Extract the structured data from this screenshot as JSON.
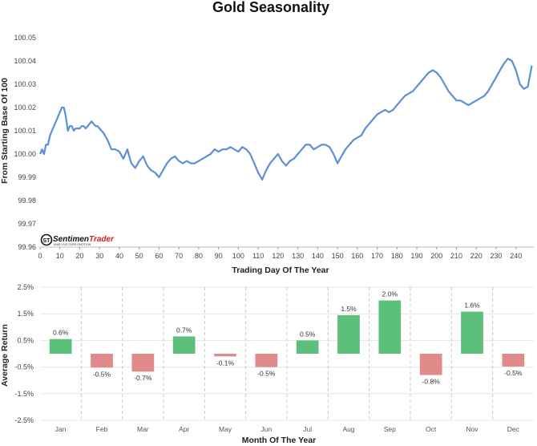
{
  "chart_data": [
    {
      "type": "line",
      "title": "Gold Seasonality",
      "xlabel": "Trading Day Of The Year",
      "ylabel": "From Starting Base Of 100",
      "xlim": [
        0,
        249
      ],
      "ylim": [
        99.96,
        100.05
      ],
      "xticks": [
        "0",
        "10",
        "20",
        "30",
        "40",
        "50",
        "60",
        "70",
        "80",
        "90",
        "100",
        "110",
        "120",
        "130",
        "140",
        "150",
        "160",
        "170",
        "180",
        "190",
        "200",
        "210",
        "220",
        "230",
        "240"
      ],
      "yticks": [
        "100.05",
        "100.04",
        "100.03",
        "100.02",
        "100.01",
        "100.00",
        "99.99",
        "99.98",
        "99.97",
        "99.96"
      ],
      "color": "#5b8fd6",
      "series": [
        {
          "name": "Gold Seasonality",
          "x": [
            0,
            1,
            2,
            3,
            4,
            5,
            6,
            7,
            8,
            9,
            10,
            11,
            12,
            13,
            14,
            15,
            16,
            17,
            18,
            19,
            20,
            21,
            22,
            23,
            24,
            25,
            26,
            27,
            28,
            29,
            30,
            32,
            34,
            36,
            38,
            40,
            42,
            44,
            46,
            48,
            50,
            52,
            54,
            56,
            58,
            60,
            62,
            64,
            66,
            68,
            70,
            72,
            74,
            76,
            78,
            80,
            82,
            84,
            86,
            88,
            90,
            92,
            94,
            96,
            98,
            100,
            102,
            104,
            106,
            108,
            110,
            112,
            114,
            116,
            118,
            120,
            122,
            124,
            126,
            128,
            130,
            132,
            134,
            136,
            138,
            140,
            142,
            144,
            146,
            148,
            150,
            152,
            154,
            156,
            158,
            160,
            162,
            164,
            166,
            168,
            170,
            172,
            174,
            176,
            178,
            180,
            182,
            184,
            186,
            188,
            190,
            192,
            194,
            196,
            198,
            200,
            202,
            204,
            206,
            208,
            210,
            212,
            214,
            216,
            218,
            220,
            222,
            224,
            226,
            228,
            230,
            232,
            234,
            236,
            238,
            240,
            242,
            244,
            246,
            248
          ],
          "y": [
            100.0,
            100.002,
            100.0,
            100.004,
            100.004,
            100.008,
            100.01,
            100.012,
            100.014,
            100.016,
            100.018,
            100.02,
            100.02,
            100.016,
            100.01,
            100.012,
            100.012,
            100.01,
            100.011,
            100.011,
            100.011,
            100.012,
            100.012,
            100.011,
            100.012,
            100.013,
            100.014,
            100.013,
            100.012,
            100.012,
            100.011,
            100.009,
            100.006,
            100.002,
            100.002,
            100.001,
            99.998,
            100.002,
            99.996,
            99.994,
            99.997,
            99.999,
            99.995,
            99.993,
            99.992,
            99.99,
            99.993,
            99.996,
            99.998,
            99.999,
            99.997,
            99.996,
            99.997,
            99.996,
            99.996,
            99.997,
            99.998,
            99.999,
            100.0,
            100.002,
            100.001,
            100.002,
            100.002,
            100.003,
            100.002,
            100.001,
            100.003,
            100.002,
            100.0,
            99.996,
            99.992,
            99.989,
            99.993,
            99.996,
            99.998,
            100.0,
            99.997,
            99.995,
            99.997,
            99.998,
            100.0,
            100.002,
            100.004,
            100.004,
            100.002,
            100.003,
            100.004,
            100.004,
            100.003,
            100.0,
            99.996,
            99.999,
            100.002,
            100.004,
            100.006,
            100.007,
            100.008,
            100.011,
            100.013,
            100.015,
            100.017,
            100.018,
            100.019,
            100.018,
            100.019,
            100.021,
            100.023,
            100.025,
            100.026,
            100.027,
            100.029,
            100.031,
            100.033,
            100.035,
            100.036,
            100.035,
            100.033,
            100.03,
            100.027,
            100.025,
            100.023,
            100.023,
            100.022,
            100.021,
            100.022,
            100.023,
            100.024,
            100.025,
            100.027,
            100.03,
            100.033,
            100.036,
            100.039,
            100.041,
            100.04,
            100.036,
            100.03,
            100.028,
            100.029,
            100.038
          ]
        }
      ]
    },
    {
      "type": "bar",
      "title": "",
      "xlabel": "Month Of The Year",
      "ylabel": "Average Return",
      "ylim": [
        -2.5,
        2.5
      ],
      "yticks": [
        "2.5%",
        "1.5%",
        "0.5%",
        "-0.5%",
        "-1.5%",
        "-2.5%"
      ],
      "positive_color": "#5cbf7a",
      "negative_color": "#e08a8a",
      "categories": [
        "Jan",
        "Feb",
        "Mar",
        "Apr",
        "May",
        "Jun",
        "Jul",
        "Aug",
        "Sep",
        "Oct",
        "Nov",
        "Dec"
      ],
      "values": [
        0.55,
        -0.52,
        -0.67,
        0.65,
        -0.1,
        -0.5,
        0.5,
        1.45,
        2.0,
        -0.8,
        1.58,
        -0.48
      ],
      "value_labels": [
        "0.6%",
        "-0.5%",
        "-0.7%",
        "0.7%",
        "-0.1%",
        "-0.5%",
        "0.5%",
        "1.5%",
        "2.0%",
        "-0.8%",
        "1.6%",
        "-0.5%"
      ]
    }
  ],
  "branding": {
    "logo_text_main": "Sentimen",
    "logo_text_accent": "Trader",
    "logo_subtext": "ANALYSIS OVER EMOTION",
    "logo_icon_text": "ST"
  }
}
